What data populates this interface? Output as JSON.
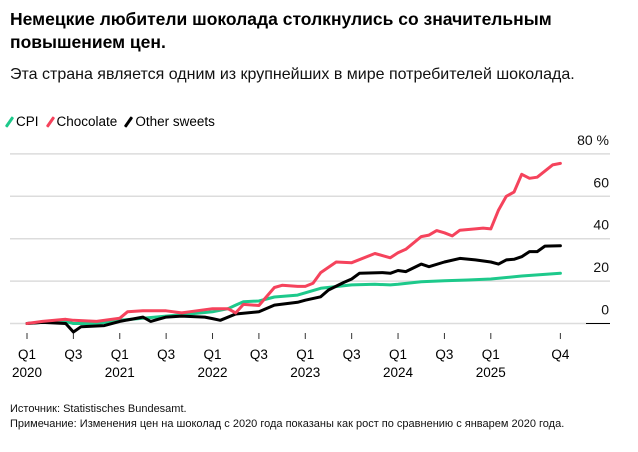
{
  "title": "Немецкие любители шоколада столкнулись со значительным повышением цен.",
  "subtitle": "Эта страна является одним из крупнейших в мире потребителей шоколада.",
  "source": "Источник: Statistisches Bundesamt.",
  "note": "Примечание: Изменения цен на шоколад с 2020 года показаны как рост по сравнению с январем 2020 года.",
  "chart_data": {
    "type": "line",
    "title": "Немецкие любители шоколада столкнулись со значительным повышением цен.",
    "ylabel": "",
    "xlabel": "",
    "ylim": [
      0,
      80
    ],
    "xlim": [
      "2020-01",
      "2025-10"
    ],
    "grid": true,
    "legend_position": "top-left",
    "y_ticks": [
      "0",
      "20",
      "40",
      "60",
      "80 %"
    ],
    "y_tick_values": [
      0,
      20,
      40,
      60,
      80
    ],
    "x_ticks": [
      {
        "date": "2020-01",
        "q": "Q1",
        "year": "2020"
      },
      {
        "date": "2020-07",
        "q": "Q3",
        "year": ""
      },
      {
        "date": "2021-01",
        "q": "Q1",
        "year": "2021"
      },
      {
        "date": "2021-07",
        "q": "Q3",
        "year": ""
      },
      {
        "date": "2022-01",
        "q": "Q1",
        "year": "2022"
      },
      {
        "date": "2022-07",
        "q": "Q3",
        "year": ""
      },
      {
        "date": "2023-01",
        "q": "Q1",
        "year": "2023"
      },
      {
        "date": "2023-07",
        "q": "Q3",
        "year": ""
      },
      {
        "date": "2024-01",
        "q": "Q1",
        "year": "2024"
      },
      {
        "date": "2024-07",
        "q": "Q3",
        "year": ""
      },
      {
        "date": "2025-01",
        "q": "Q1",
        "year": "2025"
      },
      {
        "date": "2025-10",
        "q": "Q4",
        "year": ""
      }
    ],
    "series": [
      {
        "name": "CPI",
        "color": "#1dc98b",
        "points": [
          [
            "2020-01",
            0
          ],
          [
            "2020-04",
            0.8
          ],
          [
            "2020-06",
            1
          ],
          [
            "2020-07",
            0
          ],
          [
            "2020-10",
            0
          ],
          [
            "2021-01",
            1.5
          ],
          [
            "2021-04",
            2.5
          ],
          [
            "2021-07",
            3.5
          ],
          [
            "2021-10",
            4.5
          ],
          [
            "2022-01",
            5.5
          ],
          [
            "2022-03",
            7
          ],
          [
            "2022-04",
            8.7
          ],
          [
            "2022-05",
            10.3
          ],
          [
            "2022-07",
            10.6
          ],
          [
            "2022-09",
            12.5
          ],
          [
            "2022-12",
            13.4
          ],
          [
            "2023-01",
            14.5
          ],
          [
            "2023-03",
            16.6
          ],
          [
            "2023-07",
            18.2
          ],
          [
            "2023-10",
            18.5
          ],
          [
            "2023-12",
            18.2
          ],
          [
            "2024-01",
            18.5
          ],
          [
            "2024-04",
            19.7
          ],
          [
            "2024-07",
            20.2
          ],
          [
            "2024-10",
            20.5
          ],
          [
            "2025-01",
            21
          ],
          [
            "2025-05",
            22.4
          ],
          [
            "2025-10",
            23.7
          ]
        ]
      },
      {
        "name": "Chocolate",
        "color": "#f5435c",
        "points": [
          [
            "2020-01",
            0
          ],
          [
            "2020-03",
            1
          ],
          [
            "2020-06",
            2
          ],
          [
            "2020-07",
            1.5
          ],
          [
            "2020-10",
            1
          ],
          [
            "2021-01",
            2.5
          ],
          [
            "2021-02",
            5.5
          ],
          [
            "2021-04",
            6
          ],
          [
            "2021-07",
            6
          ],
          [
            "2021-09",
            5
          ],
          [
            "2021-10",
            5.5
          ],
          [
            "2022-01",
            7
          ],
          [
            "2022-03",
            7
          ],
          [
            "2022-04",
            5
          ],
          [
            "2022-05",
            9
          ],
          [
            "2022-07",
            8.5
          ],
          [
            "2022-09",
            17
          ],
          [
            "2022-10",
            18
          ],
          [
            "2022-12",
            17.5
          ],
          [
            "2023-01",
            17.5
          ],
          [
            "2023-02",
            19
          ],
          [
            "2023-03",
            24
          ],
          [
            "2023-05",
            29
          ],
          [
            "2023-07",
            28.7
          ],
          [
            "2023-10",
            33
          ],
          [
            "2023-12",
            31
          ],
          [
            "2024-01",
            33.4
          ],
          [
            "2024-02",
            35
          ],
          [
            "2024-04",
            41
          ],
          [
            "2024-05",
            41.7
          ],
          [
            "2024-06",
            43.8
          ],
          [
            "2024-07",
            42.8
          ],
          [
            "2024-08",
            41.3
          ],
          [
            "2024-09",
            44
          ],
          [
            "2024-11",
            44.6
          ],
          [
            "2024-12",
            45
          ],
          [
            "2025-01",
            44.6
          ],
          [
            "2025-02",
            53.5
          ],
          [
            "2025-03",
            60
          ],
          [
            "2025-04",
            62
          ],
          [
            "2025-05",
            70.4
          ],
          [
            "2025-06",
            68.5
          ],
          [
            "2025-07",
            69
          ],
          [
            "2025-09",
            74.8
          ],
          [
            "2025-10",
            75.5
          ]
        ]
      },
      {
        "name": "Other sweets",
        "color": "#000000",
        "points": [
          [
            "2020-01",
            0
          ],
          [
            "2020-03",
            0.5
          ],
          [
            "2020-06",
            0
          ],
          [
            "2020-07",
            -4
          ],
          [
            "2020-08",
            -1.5
          ],
          [
            "2020-11",
            -1
          ],
          [
            "2021-01",
            1
          ],
          [
            "2021-04",
            3
          ],
          [
            "2021-05",
            1
          ],
          [
            "2021-07",
            3
          ],
          [
            "2021-09",
            3.5
          ],
          [
            "2021-12",
            3
          ],
          [
            "2022-01",
            2.3
          ],
          [
            "2022-02",
            1.5
          ],
          [
            "2022-04",
            4.5
          ],
          [
            "2022-07",
            5.5
          ],
          [
            "2022-09",
            8.7
          ],
          [
            "2022-12",
            10
          ],
          [
            "2023-01",
            11
          ],
          [
            "2023-03",
            12.6
          ],
          [
            "2023-04",
            15.8
          ],
          [
            "2023-06",
            19.4
          ],
          [
            "2023-07",
            21
          ],
          [
            "2023-08",
            23.7
          ],
          [
            "2023-11",
            24
          ],
          [
            "2023-12",
            23.7
          ],
          [
            "2024-01",
            25
          ],
          [
            "2024-02",
            24.5
          ],
          [
            "2024-04",
            28
          ],
          [
            "2024-05",
            26.8
          ],
          [
            "2024-07",
            29
          ],
          [
            "2024-09",
            30.7
          ],
          [
            "2024-11",
            30
          ],
          [
            "2025-01",
            29
          ],
          [
            "2025-02",
            28
          ],
          [
            "2025-03",
            30
          ],
          [
            "2025-04",
            30.3
          ],
          [
            "2025-05",
            31.5
          ],
          [
            "2025-06",
            33.9
          ],
          [
            "2025-07",
            33.9
          ],
          [
            "2025-08",
            36.5
          ],
          [
            "2025-10",
            36.7
          ]
        ]
      }
    ]
  }
}
